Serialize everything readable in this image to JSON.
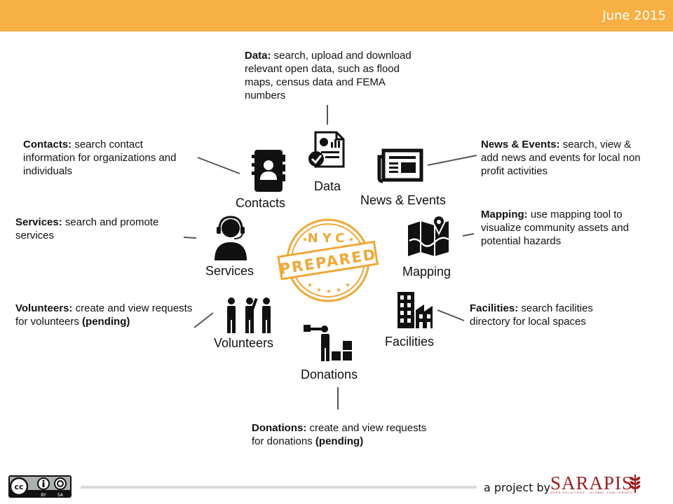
{
  "header": {
    "date": "June 2015"
  },
  "center_badge": {
    "top_text": "NYC",
    "main_text": "PREPARED"
  },
  "nodes": {
    "data": {
      "label": "Data",
      "title": "Data:",
      "desc": " search, upload and download relevant open data, such as flood maps, census data and FEMA numbers"
    },
    "contacts": {
      "label": "Contacts",
      "title": "Contacts:",
      "desc": " search contact information for organizations and individuals"
    },
    "news": {
      "label": "News & Events",
      "title": "News & Events:",
      "desc": " search, view & add news and events for local non profit activities"
    },
    "services": {
      "label": "Services",
      "title": "Services:",
      "desc": " search and promote services"
    },
    "mapping": {
      "label": "Mapping",
      "title": "Mapping:",
      "desc": " use mapping tool to visualize community assets and potential hazards"
    },
    "volunteers": {
      "label": "Volunteers",
      "title": "Volunteers:",
      "desc": " create and view requests for volunteers ",
      "extra": "(pending)"
    },
    "facilities": {
      "label": "Facilities",
      "title": "Facilities:",
      "desc": " search facilities directory for local spaces"
    },
    "donations": {
      "label": "Donations",
      "title": "Donations:",
      "desc": " create and view requests for donations ",
      "extra": "(pending)"
    }
  },
  "footer": {
    "license": "CC BY SA",
    "by_label": "BY",
    "sa_label": "SA",
    "project_text": "a project by",
    "brand": "SARAPIS",
    "brand_sub": "OPEN SOLUTIONS · GLOBAL CHALLENGES"
  },
  "colors": {
    "accent": "#f7b043",
    "badge": "#f0a836",
    "brand": "#9a1f1f"
  }
}
